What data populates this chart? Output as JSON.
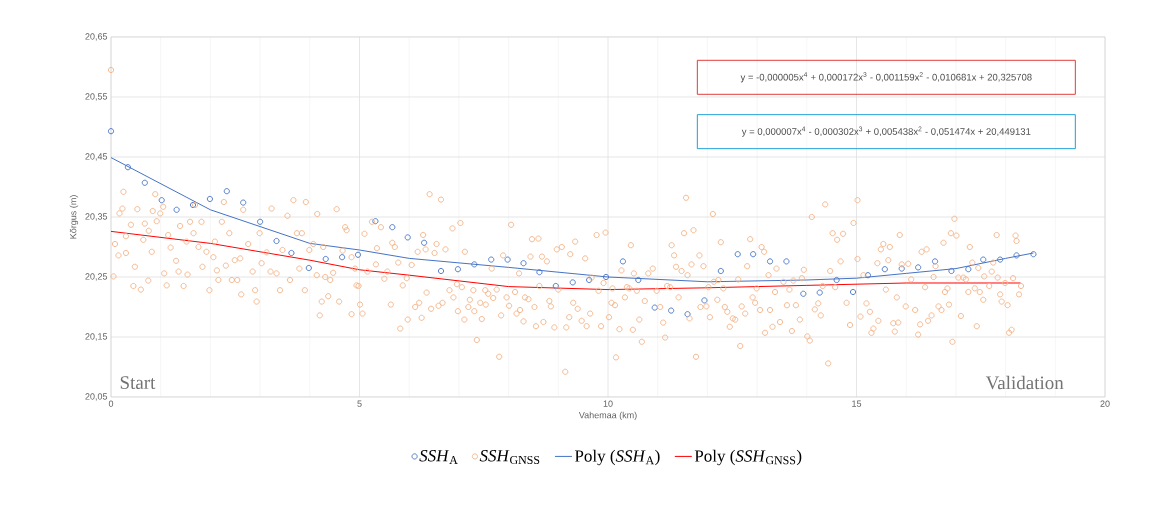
{
  "chart_data": {
    "type": "scatter",
    "xlabel": "Vahemaa (km)",
    "ylabel": "Kõrgus (m)",
    "xlim": [
      0,
      20
    ],
    "xticks": [
      0,
      5,
      10,
      15,
      20
    ],
    "ylim": [
      20.05,
      20.65
    ],
    "yticks": [
      {
        "value": 20.05,
        "label": "20,05"
      },
      {
        "value": 20.15,
        "label": "20,15"
      },
      {
        "value": 20.25,
        "label": "20,25"
      },
      {
        "value": 20.35,
        "label": "20,35"
      },
      {
        "value": 20.45,
        "label": "20,45"
      },
      {
        "value": 20.55,
        "label": "20,55"
      },
      {
        "value": 20.65,
        "label": "20,65"
      }
    ],
    "grid": true,
    "legend": "bottom",
    "annotations": [
      "y = -0,000005x$^{4}$ + 0,000172x$^{3}$ - 0,001159x$^{2}$ - 0,010681x + 20,325708",
      "y = 0,000007x$^{4}$ - 0,000302x$^{3}$ + 0,005438x$^{2}$ - 0,051474x + 20,449131",
      "Start",
      "Validation"
    ],
    "series": [
      {
        "name": "*SSH*$_{A}$",
        "marker": "circle",
        "color": "#4472c4",
        "x": [
          0,
          0.34,
          0.68,
          1.02,
          1.32,
          1.65,
          1.99,
          2.33,
          2.66,
          3.0,
          3.33,
          3.63,
          3.98,
          4.32,
          4.65,
          4.97,
          5.32,
          5.66,
          5.97,
          6.3,
          6.64,
          6.98,
          7.31,
          7.65,
          7.98,
          8.3,
          8.62,
          8.95,
          9.29,
          9.62,
          9.96,
          10.3,
          10.61,
          10.94,
          11.27,
          11.6,
          11.94,
          12.27,
          12.61,
          12.92,
          13.26,
          13.59,
          13.93,
          14.26,
          14.6,
          14.93,
          15.23,
          15.57,
          15.91,
          16.24,
          16.58,
          16.91,
          17.25,
          17.55,
          17.89,
          18.22,
          18.56
        ],
        "values": [
          20.493,
          20.433,
          20.407,
          20.378,
          20.362,
          20.37,
          20.38,
          20.393,
          20.374,
          20.342,
          20.31,
          20.29,
          20.265,
          20.28,
          20.283,
          20.287,
          20.343,
          20.333,
          20.316,
          20.307,
          20.26,
          20.263,
          20.271,
          20.279,
          20.279,
          20.273,
          20.258,
          20.235,
          20.241,
          20.245,
          20.25,
          20.276,
          20.245,
          20.199,
          20.194,
          20.188,
          20.211,
          20.26,
          20.288,
          20.288,
          20.276,
          20.276,
          20.222,
          20.224,
          20.245,
          20.225,
          20.253,
          20.263,
          20.264,
          20.266,
          20.276,
          20.26,
          20.263,
          20.279,
          20.279,
          20.286,
          20.288
        ]
      },
      {
        "name": "*SSH*$_{GNSS}$",
        "marker": "circle",
        "color": "#f4b183",
        "x": [
          0,
          0.05,
          0.08,
          0.15,
          0.17,
          0.23,
          0.25,
          0.3,
          0.3,
          0.4,
          0.45,
          0.48,
          0.53,
          0.6,
          0.65,
          0.68,
          0.75,
          0.76,
          0.82,
          0.84,
          0.89,
          0.92,
          0.99,
          1.05,
          1.07,
          1.12,
          1.15,
          1.2,
          1.31,
          1.36,
          1.39,
          1.46,
          1.52,
          1.54,
          1.59,
          1.66,
          1.69,
          1.76,
          1.82,
          1.84,
          1.92,
          1.98,
          2.06,
          2.09,
          2.13,
          2.16,
          2.23,
          2.27,
          2.31,
          2.38,
          2.43,
          2.49,
          2.54,
          2.6,
          2.62,
          2.66,
          2.76,
          2.85,
          2.9,
          2.93,
          2.99,
          3.03,
          3.13,
          3.21,
          3.23,
          3.33,
          3.4,
          3.45,
          3.55,
          3.6,
          3.67,
          3.74,
          3.79,
          3.84,
          3.9,
          3.92,
          3.99,
          4.07,
          4.14,
          4.15,
          4.2,
          4.24,
          4.27,
          4.31,
          4.37,
          4.41,
          4.47,
          4.54,
          4.59,
          4.66,
          4.71,
          4.74,
          4.84,
          4.84,
          4.91,
          4.98,
          4.94,
          5.01,
          5.06,
          5.1,
          5.16,
          5.25,
          5.33,
          5.35,
          5.43,
          5.5,
          5.56,
          5.63,
          5.66,
          5.71,
          5.78,
          5.82,
          5.87,
          5.95,
          5.97,
          6.05,
          6.12,
          6.17,
          6.2,
          6.25,
          6.28,
          6.33,
          6.35,
          6.41,
          6.44,
          6.51,
          6.55,
          6.59,
          6.64,
          6.67,
          6.73,
          6.81,
          6.87,
          6.89,
          6.96,
          6.98,
          7.03,
          7.06,
          7.11,
          7.12,
          7.19,
          7.22,
          7.29,
          7.31,
          7.36,
          7.43,
          7.46,
          7.53,
          7.54,
          7.59,
          7.66,
          7.69,
          7.76,
          7.81,
          7.85,
          7.89,
          7.96,
          8.01,
          8.05,
          8.13,
          8.16,
          8.21,
          8.23,
          8.3,
          8.33,
          8.4,
          8.44,
          8.47,
          8.52,
          8.55,
          8.6,
          8.62,
          8.67,
          8.7,
          8.77,
          8.82,
          8.85,
          8.92,
          8.97,
          9.0,
          9.07,
          9.14,
          9.16,
          9.22,
          9.24,
          9.3,
          9.34,
          9.39,
          9.47,
          9.54,
          9.57,
          9.64,
          9.67,
          9.77,
          9.81,
          9.86,
          9.91,
          9.95,
          10.02,
          10.07,
          10.09,
          10.14,
          10.16,
          10.23,
          10.27,
          10.34,
          10.38,
          10.43,
          10.46,
          10.5,
          10.52,
          10.58,
          10.63,
          10.68,
          10.74,
          10.81,
          10.9,
          10.98,
          11.05,
          11.11,
          11.15,
          11.19,
          11.25,
          11.28,
          11.33,
          11.37,
          11.42,
          11.48,
          11.53,
          11.57,
          11.6,
          11.64,
          11.68,
          11.72,
          11.77,
          11.84,
          11.86,
          11.92,
          11.98,
          12.02,
          12.05,
          12.11,
          12.13,
          12.2,
          12.22,
          12.27,
          12.32,
          12.35,
          12.4,
          12.45,
          12.51,
          12.56,
          12.62,
          12.66,
          12.69,
          12.76,
          12.8,
          12.86,
          12.91,
          12.96,
          12.99,
          13.06,
          13.09,
          13.14,
          13.16,
          13.23,
          13.26,
          13.31,
          13.36,
          13.39,
          13.46,
          13.53,
          13.6,
          13.65,
          13.7,
          13.73,
          13.78,
          13.86,
          13.9,
          13.94,
          14.01,
          14.06,
          14.1,
          14.16,
          14.23,
          14.28,
          14.32,
          14.37,
          14.43,
          14.47,
          14.52,
          14.57,
          14.61,
          14.68,
          14.73,
          14.8,
          14.87,
          14.94,
          15.02,
          15.02,
          15.08,
          15.14,
          15.2,
          15.27,
          15.3,
          15.34,
          15.42,
          15.44,
          15.49,
          15.54,
          15.59,
          15.64,
          15.67,
          15.74,
          15.77,
          15.81,
          15.84,
          15.87,
          15.91,
          15.99,
          16.04,
          16.1,
          16.18,
          16.24,
          16.28,
          16.31,
          16.38,
          16.41,
          16.44,
          16.51,
          16.55,
          16.59,
          16.65,
          16.71,
          16.75,
          16.78,
          16.83,
          16.86,
          16.9,
          16.93,
          16.97,
          17.01,
          17.05,
          17.1,
          17.15,
          17.2,
          17.25,
          17.28,
          17.33,
          17.38,
          17.42,
          17.45,
          17.48,
          17.55,
          17.57,
          17.67,
          17.72,
          17.75,
          17.82,
          17.84,
          17.89,
          17.92,
          17.99,
          18.04,
          18.07,
          18.12,
          18.15,
          18.2,
          18.22,
          18.27,
          18.31
        ],
        "values": [
          20.595,
          20.251,
          20.305,
          20.286,
          20.356,
          20.364,
          20.392,
          20.318,
          20.29,
          20.337,
          20.235,
          20.267,
          20.363,
          20.229,
          20.312,
          20.339,
          20.244,
          20.327,
          20.292,
          20.36,
          20.388,
          20.343,
          20.356,
          20.367,
          20.256,
          20.236,
          20.32,
          20.299,
          20.277,
          20.259,
          20.335,
          20.235,
          20.309,
          20.254,
          20.342,
          20.323,
          20.37,
          20.3,
          20.342,
          20.267,
          20.292,
          20.228,
          20.283,
          20.309,
          20.261,
          20.245,
          20.342,
          20.375,
          20.269,
          20.323,
          20.245,
          20.278,
          20.245,
          20.281,
          20.221,
          20.362,
          20.305,
          20.259,
          20.228,
          20.209,
          20.323,
          20.273,
          20.291,
          20.259,
          20.364,
          20.256,
          20.228,
          20.295,
          20.352,
          20.245,
          20.378,
          20.323,
          20.264,
          20.323,
          20.228,
          20.375,
          20.295,
          20.305,
          20.253,
          20.355,
          20.186,
          20.209,
          20.3,
          20.25,
          20.218,
          20.245,
          20.257,
          20.363,
          20.209,
          20.294,
          20.333,
          20.328,
          20.188,
          20.283,
          20.264,
          20.235,
          20.236,
          20.204,
          20.189,
          20.322,
          20.259,
          20.342,
          20.271,
          20.298,
          20.333,
          20.247,
          20.259,
          20.204,
          20.307,
          20.3,
          20.274,
          20.164,
          20.236,
          20.248,
          20.179,
          20.27,
          20.2,
          20.292,
          20.207,
          20.182,
          20.32,
          20.296,
          20.224,
          20.388,
          20.197,
          20.29,
          20.305,
          20.202,
          20.379,
          20.207,
          20.296,
          20.228,
          20.331,
          20.216,
          20.238,
          20.193,
          20.34,
          20.233,
          20.179,
          20.292,
          20.2,
          20.212,
          20.228,
          20.193,
          20.145,
          20.207,
          20.18,
          20.228,
          20.204,
          20.222,
          20.264,
          20.215,
          20.229,
          20.117,
          20.186,
          20.286,
          20.216,
          20.202,
          20.337,
          20.225,
          20.189,
          20.256,
          20.195,
          20.176,
          20.216,
          20.213,
          20.284,
          20.313,
          20.2,
          20.168,
          20.314,
          20.235,
          20.284,
          20.175,
          20.276,
          20.21,
          20.201,
          20.166,
          20.296,
          20.229,
          20.3,
          20.092,
          20.166,
          20.183,
          20.288,
          20.207,
          20.309,
          20.197,
          20.177,
          20.281,
          20.168,
          20.189,
          20.249,
          20.32,
          20.227,
          20.168,
          20.24,
          20.324,
          20.183,
          20.207,
          20.231,
          20.203,
          20.116,
          20.163,
          20.261,
          20.216,
          20.233,
          20.231,
          20.303,
          20.162,
          20.256,
          20.227,
          20.179,
          20.142,
          20.21,
          20.256,
          20.264,
          20.227,
          20.2,
          20.174,
          20.149,
          20.235,
          20.233,
          20.303,
          20.286,
          20.267,
          20.216,
          20.26,
          20.323,
          20.382,
          20.253,
          20.181,
          20.271,
          20.328,
          20.117,
          20.286,
          20.2,
          20.268,
          20.201,
          20.233,
          20.183,
          20.355,
          20.242,
          20.212,
          20.245,
          20.308,
          20.231,
          20.2,
          20.192,
          20.167,
          20.181,
          20.179,
          20.246,
          20.135,
          20.201,
          20.189,
          20.268,
          20.313,
          20.216,
          20.207,
          20.231,
          20.195,
          20.3,
          20.292,
          20.157,
          20.253,
          20.195,
          20.167,
          20.225,
          20.264,
          20.175,
          20.242,
          20.203,
          20.229,
          20.16,
          20.244,
          20.203,
          20.179,
          20.248,
          20.262,
          20.151,
          20.144,
          20.35,
          20.196,
          20.206,
          20.186,
          20.235,
          20.371,
          20.106,
          20.26,
          20.323,
          20.233,
          20.312,
          20.276,
          20.322,
          20.207,
          20.17,
          20.34,
          20.378,
          20.28,
          20.184,
          20.253,
          20.206,
          20.192,
          20.157,
          20.164,
          20.273,
          20.177,
          20.296,
          20.305,
          20.229,
          20.278,
          20.3,
          20.173,
          20.159,
          20.216,
          20.174,
          20.32,
          20.271,
          20.201,
          20.272,
          20.246,
          20.195,
          20.154,
          20.171,
          20.292,
          20.233,
          20.296,
          20.177,
          20.186,
          20.25,
          20.268,
          20.201,
          20.195,
          20.307,
          20.225,
          20.231,
          20.204,
          20.323,
          20.142,
          20.347,
          20.319,
          20.249,
          20.185,
          20.249,
          20.246,
          20.225,
          20.3,
          20.274,
          20.231,
          20.168,
          20.265,
          20.225,
          20.212,
          20.251,
          20.235,
          20.259,
          20.274,
          20.32,
          20.249,
          20.221,
          20.209,
          20.24,
          20.203,
          20.157,
          20.162,
          20.248,
          20.319,
          20.31,
          20.221,
          20.235
        ]
      },
      {
        "name": "Poly (*SSH*$_{A}$)",
        "type": "line",
        "marker": "none",
        "color": "#4472c4",
        "x": [
          0,
          2,
          4,
          5,
          6,
          8,
          10,
          12,
          14,
          15,
          16,
          17,
          18,
          18.56
        ],
        "values": [
          20.449,
          20.362,
          20.306,
          20.295,
          20.281,
          20.266,
          20.25,
          20.242,
          20.245,
          20.248,
          20.256,
          20.264,
          20.281,
          20.29
        ]
      },
      {
        "name": "Poly (*SSH*$_{GNSS}$)",
        "type": "line",
        "marker": "none",
        "color": "#ff0000",
        "x": [
          0,
          2,
          4,
          5,
          6,
          8,
          10,
          12,
          14,
          16,
          18.3
        ],
        "values": [
          20.326,
          20.306,
          20.278,
          20.262,
          20.253,
          20.234,
          20.229,
          20.232,
          20.236,
          20.24,
          20.24
        ]
      }
    ]
  }
}
